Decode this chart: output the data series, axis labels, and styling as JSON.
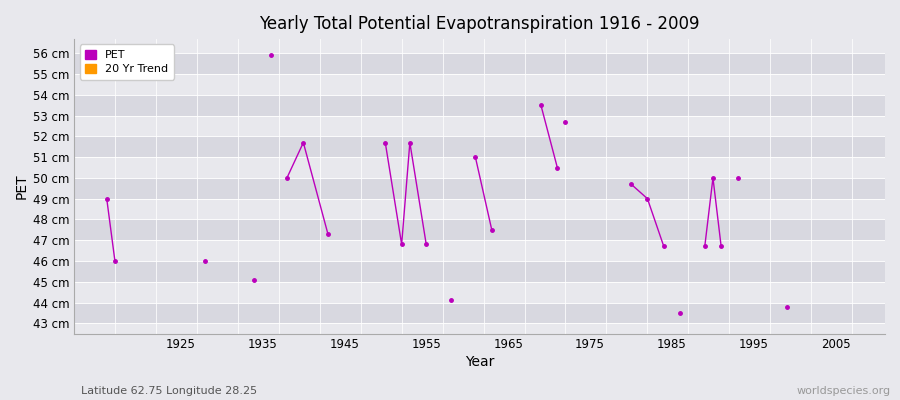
{
  "title": "Yearly Total Potential Evapotranspiration 1916 - 2009",
  "xlabel": "Year",
  "ylabel": "PET",
  "subtitle": "Latitude 62.75 Longitude 28.25",
  "watermark": "worldspecies.org",
  "ylim": [
    42.5,
    56.7
  ],
  "xlim": [
    1912,
    2011
  ],
  "yticks": [
    43,
    44,
    45,
    46,
    47,
    48,
    49,
    50,
    51,
    52,
    53,
    54,
    55,
    56
  ],
  "ytick_labels": [
    "43 cm",
    "44 cm",
    "45 cm",
    "46 cm",
    "47 cm",
    "48 cm",
    "49 cm",
    "50 cm",
    "51 cm",
    "52 cm",
    "53 cm",
    "54 cm",
    "55 cm",
    "56 cm"
  ],
  "xticks": [
    1925,
    1935,
    1945,
    1955,
    1965,
    1975,
    1985,
    1995,
    2005
  ],
  "pet_color": "#bb00bb",
  "trend_color": "#ff9900",
  "bg_light": "#e8e8ed",
  "bg_dark": "#d8d8e0",
  "connected_segments": [
    [
      [
        1916,
        49.0
      ],
      [
        1917,
        46.0
      ]
    ],
    [
      [
        1938,
        50.0
      ],
      [
        1940,
        51.7
      ],
      [
        1943,
        47.3
      ]
    ],
    [
      [
        1950,
        51.7
      ],
      [
        1952,
        46.8
      ],
      [
        1953,
        51.7
      ],
      [
        1955,
        46.8
      ]
    ],
    [
      [
        1961,
        51.0
      ],
      [
        1963,
        47.5
      ]
    ],
    [
      [
        1969,
        53.5
      ],
      [
        1971,
        50.5
      ]
    ],
    [
      [
        1972,
        52.7
      ]
    ],
    [
      [
        1980,
        49.7
      ],
      [
        1982,
        49.0
      ],
      [
        1984,
        46.7
      ]
    ],
    [
      [
        1989,
        46.7
      ],
      [
        1990,
        50.0
      ],
      [
        1991,
        46.7
      ]
    ],
    [
      [
        1993,
        50.0
      ]
    ]
  ],
  "isolated_points": [
    [
      1928,
      46.0
    ],
    [
      1934,
      45.1
    ],
    [
      1936,
      55.9
    ],
    [
      1958,
      44.1
    ],
    [
      1986,
      43.5
    ],
    [
      1999,
      43.8
    ]
  ]
}
